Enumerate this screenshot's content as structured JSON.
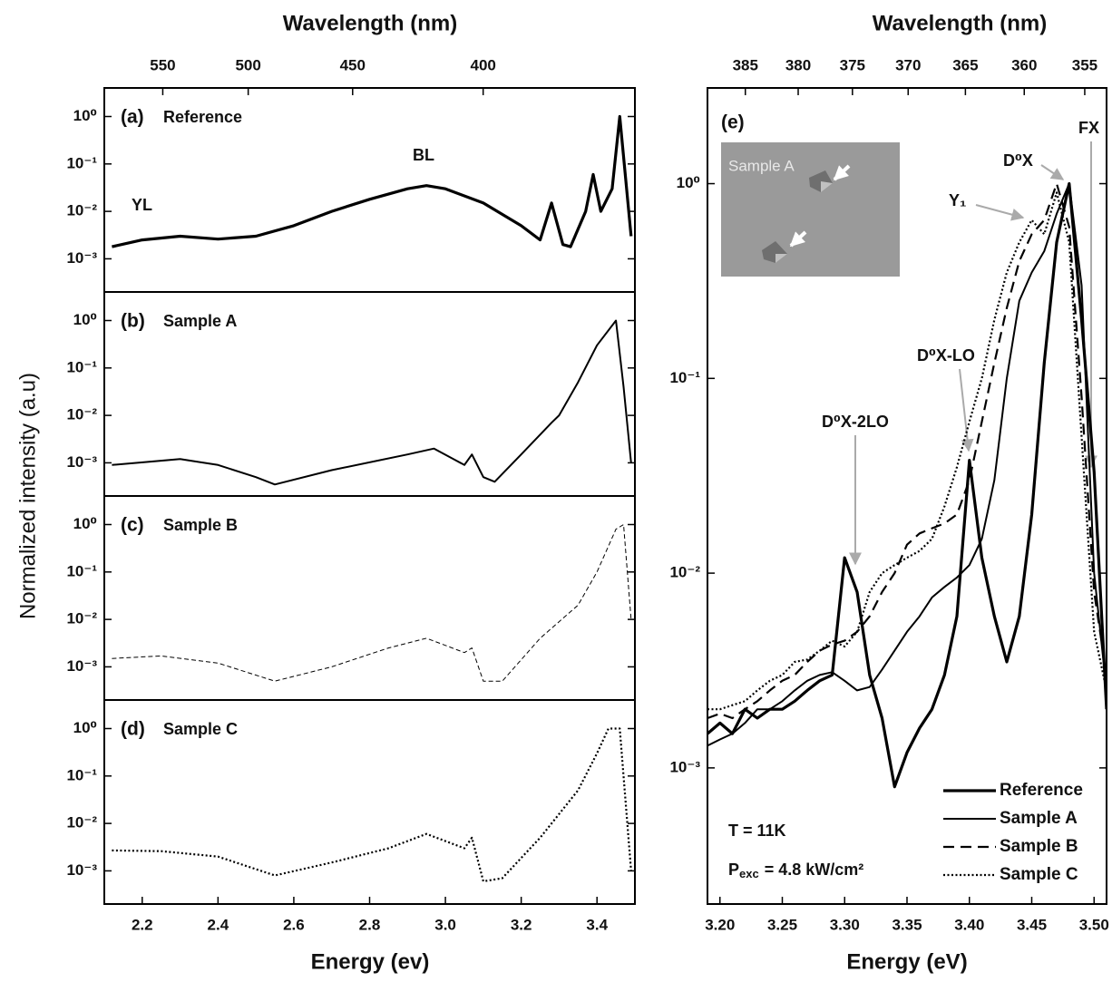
{
  "chart_data": [
    {
      "type": "line",
      "panel": "(a)",
      "ylabel": "Normalized intensity (a.u)",
      "x2label": "Wavelength (nm)",
      "x2ticks": [
        550,
        500,
        450,
        400
      ],
      "xlim": [
        2.1,
        3.5
      ],
      "ylim": [
        0.0002,
        4
      ],
      "ylog": true,
      "yticks": [
        {
          "value": 1,
          "label": "10⁰"
        },
        {
          "value": 0.1,
          "label": "10⁻¹"
        },
        {
          "value": 0.01,
          "label": "10⁻²"
        },
        {
          "value": 0.001,
          "label": "10⁻³"
        }
      ],
      "annotations": {
        "yl": "YL",
        "bl": "BL"
      },
      "x": [
        2.12,
        2.2,
        2.3,
        2.4,
        2.5,
        2.6,
        2.7,
        2.8,
        2.9,
        2.95,
        3.0,
        3.1,
        3.2,
        3.25,
        3.28,
        3.31,
        3.33,
        3.37,
        3.39,
        3.41,
        3.44,
        3.46,
        3.49
      ],
      "series": [
        {
          "name": "Reference",
          "color": "#000000",
          "linestyle": "thick",
          "values": [
            0.0018,
            0.0025,
            0.003,
            0.0026,
            0.003,
            0.005,
            0.01,
            0.018,
            0.03,
            0.035,
            0.03,
            0.015,
            0.005,
            0.0025,
            0.015,
            0.002,
            0.0018,
            0.01,
            0.06,
            0.01,
            0.03,
            1,
            0.003
          ]
        }
      ]
    },
    {
      "type": "line",
      "panel": "(b)",
      "xlim": [
        2.1,
        3.5
      ],
      "ylim": [
        0.0002,
        4
      ],
      "ylog": true,
      "yticks": [
        {
          "value": 1,
          "label": "10⁰"
        },
        {
          "value": 0.1,
          "label": "10⁻¹"
        },
        {
          "value": 0.01,
          "label": "10⁻²"
        },
        {
          "value": 0.001,
          "label": "10⁻³"
        }
      ],
      "x": [
        2.12,
        2.3,
        2.4,
        2.5,
        2.55,
        2.7,
        2.9,
        2.97,
        3.05,
        3.07,
        3.1,
        3.13,
        3.2,
        3.28,
        3.3,
        3.35,
        3.4,
        3.45,
        3.47,
        3.49
      ],
      "series": [
        {
          "name": "Sample A",
          "color": "#000000",
          "linestyle": "solid",
          "values": [
            0.0009,
            0.0012,
            0.0009,
            0.0005,
            0.00035,
            0.0007,
            0.0015,
            0.002,
            0.0009,
            0.0015,
            0.0005,
            0.0004,
            0.0015,
            0.007,
            0.01,
            0.05,
            0.3,
            1,
            0.04,
            0.001
          ]
        }
      ]
    },
    {
      "type": "line",
      "panel": "(c)",
      "xlim": [
        2.1,
        3.5
      ],
      "ylim": [
        0.0002,
        4
      ],
      "ylog": true,
      "yticks": [
        {
          "value": 1,
          "label": "10⁰"
        },
        {
          "value": 0.1,
          "label": "10⁻¹"
        },
        {
          "value": 0.01,
          "label": "10⁻²"
        },
        {
          "value": 0.001,
          "label": "10⁻³"
        }
      ],
      "x": [
        2.12,
        2.25,
        2.4,
        2.55,
        2.7,
        2.85,
        2.95,
        3.05,
        3.07,
        3.1,
        3.15,
        3.25,
        3.35,
        3.4,
        3.45,
        3.47,
        3.49
      ],
      "series": [
        {
          "name": "Sample B",
          "color": "#000000",
          "linestyle": "thindash",
          "values": [
            0.0015,
            0.0017,
            0.0012,
            0.0005,
            0.001,
            0.0025,
            0.004,
            0.002,
            0.0025,
            0.0005,
            0.0005,
            0.004,
            0.02,
            0.1,
            0.8,
            1,
            0.01
          ]
        }
      ]
    },
    {
      "type": "line",
      "panel": "(d)",
      "xlabel": "Energy (ev)",
      "xlim": [
        2.1,
        3.5
      ],
      "ylim": [
        0.0002,
        4
      ],
      "ylog": true,
      "xticks": [
        {
          "value": 2.2,
          "label": "2.2"
        },
        {
          "value": 2.4,
          "label": "2.4"
        },
        {
          "value": 2.6,
          "label": "2.6"
        },
        {
          "value": 2.8,
          "label": "2.8"
        },
        {
          "value": 3,
          "label": "3.0"
        },
        {
          "value": 3.2,
          "label": "3.2"
        },
        {
          "value": 3.4,
          "label": "3.4"
        }
      ],
      "yticks": [
        {
          "value": 1,
          "label": "10⁰"
        },
        {
          "value": 0.1,
          "label": "10⁻¹"
        },
        {
          "value": 0.01,
          "label": "10⁻²"
        },
        {
          "value": 0.001,
          "label": "10⁻³"
        }
      ],
      "x": [
        2.12,
        2.25,
        2.4,
        2.55,
        2.7,
        2.85,
        2.95,
        3.05,
        3.07,
        3.1,
        3.15,
        3.25,
        3.35,
        3.4,
        3.43,
        3.46,
        3.49
      ],
      "series": [
        {
          "name": "Sample C",
          "color": "#000000",
          "linestyle": "dotted",
          "values": [
            0.0027,
            0.0026,
            0.002,
            0.0008,
            0.0015,
            0.003,
            0.006,
            0.003,
            0.005,
            0.0006,
            0.0007,
            0.005,
            0.05,
            0.3,
            1,
            1,
            0.001
          ]
        }
      ]
    },
    {
      "type": "line",
      "panel": "(e)",
      "xlabel": "Energy (eV)",
      "x2label": "Wavelength (nm)",
      "x2ticks": [
        385,
        380,
        375,
        370,
        365,
        360,
        355
      ],
      "xlim": [
        3.19,
        3.51
      ],
      "ylim": [
        0.0002,
        3.1
      ],
      "ylog": true,
      "xticks": [
        {
          "value": 3.2,
          "label": "3.20"
        },
        {
          "value": 3.25,
          "label": "3.25"
        },
        {
          "value": 3.3,
          "label": "3.30"
        },
        {
          "value": 3.35,
          "label": "3.35"
        },
        {
          "value": 3.4,
          "label": "3.40"
        },
        {
          "value": 3.45,
          "label": "3.45"
        },
        {
          "value": 3.5,
          "label": "3.50"
        }
      ],
      "yticks": [
        {
          "value": 1,
          "label": "10⁰"
        },
        {
          "value": 0.1,
          "label": "10⁻¹"
        },
        {
          "value": 0.01,
          "label": "10⁻²"
        },
        {
          "value": 0.001,
          "label": "10⁻³"
        }
      ],
      "legend": "lower right",
      "inset_label": "Sample A",
      "annotations": {
        "d0x_2lo": "D⁰X-2LO",
        "d0x_lo": "D⁰X-LO",
        "y1": "Y₁",
        "d0x": "D⁰X",
        "fx": "FX",
        "temperature": "T = 11K",
        "power": {
          "symbol": "P",
          "subscript": "exc",
          "text": "= 4.8 kW/cm²"
        }
      },
      "x": [
        3.19,
        3.2,
        3.21,
        3.22,
        3.23,
        3.24,
        3.25,
        3.26,
        3.27,
        3.28,
        3.29,
        3.3,
        3.31,
        3.32,
        3.33,
        3.34,
        3.35,
        3.36,
        3.37,
        3.38,
        3.39,
        3.4,
        3.41,
        3.42,
        3.43,
        3.44,
        3.45,
        3.46,
        3.47,
        3.48,
        3.49,
        3.5,
        3.51
      ],
      "series": [
        {
          "name": "Reference",
          "color": "#000000",
          "linestyle": "thick",
          "values": [
            0.0015,
            0.0017,
            0.0015,
            0.002,
            0.0018,
            0.002,
            0.002,
            0.0022,
            0.0025,
            0.0028,
            0.003,
            0.012,
            0.008,
            0.003,
            0.0018,
            0.0008,
            0.0012,
            0.0016,
            0.002,
            0.003,
            0.006,
            0.038,
            0.012,
            0.006,
            0.0035,
            0.006,
            0.02,
            0.12,
            0.5,
            1,
            0.2,
            0.033,
            0.002
          ]
        },
        {
          "name": "Sample A",
          "color": "#000000",
          "linestyle": "solid",
          "values": [
            0.0013,
            0.0014,
            0.0015,
            0.0017,
            0.002,
            0.002,
            0.0022,
            0.0025,
            0.0028,
            0.003,
            0.0031,
            0.0028,
            0.0025,
            0.0026,
            0.0032,
            0.004,
            0.005,
            0.006,
            0.0075,
            0.0085,
            0.0095,
            0.011,
            0.015,
            0.03,
            0.1,
            0.25,
            0.35,
            0.45,
            0.7,
            1,
            0.3,
            0.01,
            0.0025
          ]
        },
        {
          "name": "Sample B",
          "color": "#000000",
          "linestyle": "dashed",
          "values": [
            0.0018,
            0.0019,
            0.0018,
            0.002,
            0.0022,
            0.0025,
            0.0028,
            0.003,
            0.0035,
            0.004,
            0.0043,
            0.0045,
            0.005,
            0.006,
            0.008,
            0.01,
            0.014,
            0.016,
            0.017,
            0.018,
            0.02,
            0.03,
            0.06,
            0.12,
            0.23,
            0.4,
            0.55,
            0.65,
            1,
            0.6,
            0.08,
            0.008,
            0.003
          ]
        },
        {
          "name": "Sample C",
          "color": "#000000",
          "linestyle": "dotted",
          "values": [
            0.002,
            0.002,
            0.0021,
            0.0022,
            0.0025,
            0.0028,
            0.003,
            0.0035,
            0.0036,
            0.004,
            0.0045,
            0.0042,
            0.005,
            0.008,
            0.01,
            0.011,
            0.012,
            0.013,
            0.015,
            0.022,
            0.035,
            0.06,
            0.1,
            0.2,
            0.35,
            0.5,
            0.65,
            0.55,
            0.9,
            0.5,
            0.05,
            0.005,
            0.0025
          ]
        }
      ]
    }
  ]
}
